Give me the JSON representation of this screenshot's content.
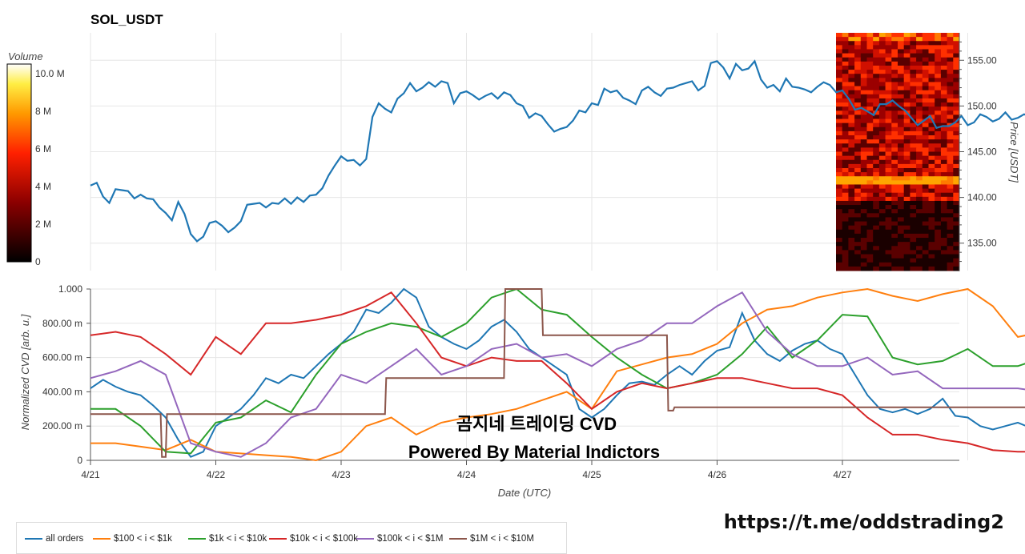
{
  "chart_data": [
    {
      "type": "line",
      "title": "SOL_USDT",
      "ylabel": "Price [USDT]",
      "ylim": [
        132,
        158
      ],
      "y_ticks": [
        "155.00",
        "150.00",
        "145.00",
        "140.00",
        "135.00"
      ],
      "series": [
        {
          "color": "#1f77b4",
          "x": [
            0,
            0.05,
            0.1,
            0.15,
            0.2,
            0.25,
            0.3,
            0.35,
            0.4,
            0.45,
            0.5,
            0.55,
            0.6,
            0.65,
            0.7,
            0.75,
            0.8,
            0.85,
            0.9,
            0.95,
            1.0,
            1.05,
            1.1,
            1.15,
            1.2,
            1.25,
            1.3,
            1.35,
            1.4,
            1.45,
            1.5,
            1.55,
            1.6,
            1.65,
            1.7,
            1.75,
            1.8,
            1.85,
            1.9,
            1.95,
            2.0,
            2.05,
            2.1,
            2.15,
            2.2,
            2.25,
            2.3,
            2.35,
            2.4,
            2.45,
            2.5,
            2.55,
            2.6,
            2.65,
            2.7,
            2.75,
            2.8,
            2.85,
            2.9,
            2.95,
            3.0,
            3.05,
            3.1,
            3.15,
            3.2,
            3.25,
            3.3,
            3.35,
            3.4,
            3.45,
            3.5,
            3.55,
            3.6,
            3.65,
            3.7,
            3.75,
            3.8,
            3.85,
            3.9,
            3.95,
            4.0,
            4.05,
            4.1,
            4.15,
            4.2,
            4.25,
            4.3,
            4.35,
            4.4,
            4.45,
            4.5,
            4.55,
            4.6,
            4.65,
            4.7,
            4.75,
            4.8,
            4.85,
            4.9,
            4.95,
            5.0,
            5.05,
            5.1,
            5.15,
            5.2,
            5.25,
            5.3,
            5.35,
            5.4,
            5.45,
            5.5,
            5.55,
            5.6,
            5.65,
            5.7,
            5.75,
            5.8,
            5.85,
            5.9,
            5.95,
            6.0,
            6.05,
            6.1,
            6.15,
            6.2,
            6.25,
            6.3,
            6.35,
            6.4,
            6.45,
            6.5,
            6.55,
            6.6,
            6.65,
            6.7,
            6.75,
            6.8,
            6.85,
            6.9,
            6.95,
            7.0,
            7.05,
            7.1,
            7.15,
            7.2,
            7.25,
            7.3,
            7.35,
            7.4,
            7.45,
            7.5,
            7.55,
            7.6,
            7.65,
            7.7,
            7.75,
            7.8,
            7.85,
            7.9,
            7.95
          ],
          "y": [
            141.3,
            141.6,
            140.1,
            139.4,
            140.9,
            140.8,
            140.7,
            139.9,
            140.3,
            139.9,
            139.8,
            138.9,
            138.3,
            137.5,
            139.5,
            138.2,
            136.0,
            135.2,
            135.7,
            137.2,
            137.4,
            136.9,
            136.2,
            136.7,
            137.4,
            139.2,
            139.3,
            139.4,
            138.9,
            139.4,
            139.3,
            139.9,
            139.3,
            140.0,
            139.5,
            140.2,
            140.3,
            141.0,
            142.4,
            143.5,
            144.5,
            144.0,
            144.1,
            143.5,
            144.2,
            148.8,
            150.3,
            149.7,
            149.3,
            150.8,
            151.4,
            152.5,
            151.6,
            152.0,
            152.6,
            152.1,
            152.7,
            152.5,
            150.3,
            151.4,
            151.6,
            151.2,
            150.7,
            151.1,
            151.4,
            150.8,
            151.5,
            151.2,
            150.3,
            150.0,
            148.7,
            149.2,
            148.9,
            148.0,
            147.2,
            147.5,
            147.7,
            148.4,
            149.5,
            149.3,
            150.3,
            150.1,
            151.9,
            151.5,
            151.7,
            150.9,
            150.6,
            150.2,
            151.7,
            152.1,
            151.5,
            151.1,
            151.9,
            152.0,
            152.3,
            152.5,
            152.7,
            151.7,
            152.2,
            154.7,
            154.9,
            154.2,
            153.0,
            154.6,
            153.9,
            154.1,
            154.9,
            152.9,
            152.0,
            152.3,
            151.6,
            153.0,
            152.1,
            152.0,
            151.8,
            151.5,
            152.1,
            152.6,
            152.3,
            151.5,
            151.7,
            150.8,
            149.6,
            149.8,
            149.4,
            149.0,
            150.2,
            150.2,
            150.6,
            150.0,
            149.5,
            148.7,
            147.9,
            148.4,
            148.9,
            147.6,
            147.8,
            147.8,
            148.2,
            148.9,
            147.9,
            148.2,
            149.1,
            148.8,
            148.3,
            148.6,
            149.3,
            148.5,
            148.7,
            149.1,
            148.8,
            149.3,
            149.1,
            149.4,
            150.2,
            149.4,
            149.9,
            149.1,
            149.5,
            149.0
          ]
        }
      ],
      "heatmap_colorbar": {
        "label": "Volume",
        "range": [
          0,
          10.5
        ],
        "ticks": [
          "10.0 M",
          "8 M",
          "6 M",
          "4 M",
          "2 M",
          "0"
        ]
      }
    },
    {
      "type": "line",
      "xlabel": "Date (UTC)",
      "ylabel": "Normalized CVD [arb. u.]",
      "ylim": [
        0,
        1
      ],
      "x_ticks": [
        "4/21",
        "4/22",
        "4/23",
        "4/24",
        "4/25",
        "4/26",
        "4/27"
      ],
      "y_ticks": [
        "1.000",
        "800.00 m",
        "600.00 m",
        "400.00 m",
        "200.00 m",
        "0"
      ],
      "series": [
        {
          "name": "all orders",
          "color": "#1f77b4",
          "x": [
            0,
            0.1,
            0.2,
            0.3,
            0.4,
            0.5,
            0.6,
            0.7,
            0.8,
            0.9,
            1.0,
            1.1,
            1.2,
            1.3,
            1.4,
            1.5,
            1.6,
            1.7,
            1.8,
            1.9,
            2.0,
            2.1,
            2.2,
            2.3,
            2.4,
            2.5,
            2.6,
            2.7,
            2.8,
            2.9,
            3.0,
            3.1,
            3.2,
            3.3,
            3.4,
            3.5,
            3.6,
            3.7,
            3.8,
            3.9,
            4.0,
            4.1,
            4.2,
            4.3,
            4.4,
            4.5,
            4.6,
            4.7,
            4.8,
            4.9,
            5.0,
            5.1,
            5.2,
            5.3,
            5.4,
            5.5,
            5.6,
            5.7,
            5.8,
            5.9,
            6.0,
            6.1,
            6.2,
            6.3,
            6.4,
            6.5,
            6.6,
            6.7,
            6.8,
            6.9,
            7.0,
            7.1,
            7.2,
            7.3,
            7.4,
            7.5,
            7.6,
            7.7,
            7.8,
            7.9,
            7.95
          ],
          "y": [
            0.42,
            0.47,
            0.43,
            0.4,
            0.38,
            0.32,
            0.25,
            0.12,
            0.02,
            0.05,
            0.2,
            0.25,
            0.3,
            0.38,
            0.48,
            0.45,
            0.5,
            0.48,
            0.55,
            0.62,
            0.68,
            0.75,
            0.88,
            0.86,
            0.92,
            1.0,
            0.95,
            0.78,
            0.72,
            0.68,
            0.65,
            0.7,
            0.78,
            0.82,
            0.75,
            0.65,
            0.6,
            0.55,
            0.5,
            0.3,
            0.25,
            0.3,
            0.38,
            0.45,
            0.46,
            0.44,
            0.5,
            0.55,
            0.5,
            0.58,
            0.64,
            0.66,
            0.86,
            0.7,
            0.62,
            0.58,
            0.64,
            0.68,
            0.7,
            0.65,
            0.62,
            0.5,
            0.38,
            0.3,
            0.28,
            0.3,
            0.27,
            0.3,
            0.36,
            0.26,
            0.25,
            0.2,
            0.18,
            0.2,
            0.22,
            0.19,
            0.2,
            0.17,
            0.19,
            0.13,
            0.11
          ]
        },
        {
          "name": "$100 < i < $1k",
          "color": "#ff7f0e",
          "x": [
            0,
            0.2,
            0.4,
            0.6,
            0.8,
            1.0,
            1.2,
            1.4,
            1.6,
            1.8,
            2.0,
            2.2,
            2.4,
            2.6,
            2.8,
            3.0,
            3.2,
            3.4,
            3.6,
            3.8,
            4.0,
            4.2,
            4.4,
            4.6,
            4.8,
            5.0,
            5.2,
            5.4,
            5.6,
            5.8,
            6.0,
            6.2,
            6.4,
            6.6,
            6.8,
            7.0,
            7.2,
            7.4,
            7.6,
            7.8,
            7.95
          ],
          "y": [
            0.1,
            0.1,
            0.08,
            0.06,
            0.12,
            0.05,
            0.04,
            0.03,
            0.02,
            0.0,
            0.05,
            0.2,
            0.25,
            0.15,
            0.22,
            0.25,
            0.27,
            0.3,
            0.35,
            0.4,
            0.3,
            0.52,
            0.56,
            0.6,
            0.62,
            0.68,
            0.8,
            0.88,
            0.9,
            0.95,
            0.98,
            1.0,
            0.96,
            0.93,
            0.97,
            1.0,
            0.9,
            0.72,
            0.75,
            0.8,
            0.77
          ]
        },
        {
          "name": "$1k < i < $10k",
          "color": "#2ca02c",
          "x": [
            0,
            0.2,
            0.4,
            0.6,
            0.8,
            1.0,
            1.2,
            1.4,
            1.6,
            1.8,
            2.0,
            2.2,
            2.4,
            2.6,
            2.8,
            3.0,
            3.2,
            3.4,
            3.6,
            3.8,
            4.0,
            4.2,
            4.4,
            4.6,
            4.8,
            5.0,
            5.2,
            5.4,
            5.6,
            5.8,
            6.0,
            6.2,
            6.4,
            6.6,
            6.8,
            7.0,
            7.2,
            7.4,
            7.6,
            7.8,
            7.95
          ],
          "y": [
            0.3,
            0.3,
            0.2,
            0.05,
            0.04,
            0.22,
            0.25,
            0.35,
            0.28,
            0.5,
            0.68,
            0.75,
            0.8,
            0.78,
            0.72,
            0.8,
            0.95,
            1.0,
            0.88,
            0.85,
            0.72,
            0.6,
            0.5,
            0.42,
            0.45,
            0.5,
            0.62,
            0.78,
            0.6,
            0.7,
            0.85,
            0.84,
            0.6,
            0.56,
            0.58,
            0.65,
            0.55,
            0.55,
            0.6,
            0.68,
            0.62
          ]
        },
        {
          "name": "$10k < i < $100k",
          "color": "#d62728",
          "x": [
            0,
            0.2,
            0.4,
            0.6,
            0.8,
            1.0,
            1.2,
            1.4,
            1.6,
            1.8,
            2.0,
            2.2,
            2.4,
            2.6,
            2.8,
            3.0,
            3.2,
            3.4,
            3.6,
            3.8,
            4.0,
            4.2,
            4.4,
            4.6,
            4.8,
            5.0,
            5.2,
            5.4,
            5.6,
            5.8,
            6.0,
            6.2,
            6.4,
            6.6,
            6.8,
            7.0,
            7.2,
            7.4,
            7.6,
            7.8,
            7.95
          ],
          "y": [
            0.73,
            0.75,
            0.72,
            0.62,
            0.5,
            0.72,
            0.62,
            0.8,
            0.8,
            0.82,
            0.85,
            0.9,
            0.98,
            0.8,
            0.6,
            0.55,
            0.6,
            0.58,
            0.58,
            0.45,
            0.3,
            0.4,
            0.45,
            0.42,
            0.45,
            0.48,
            0.48,
            0.45,
            0.42,
            0.42,
            0.38,
            0.25,
            0.15,
            0.15,
            0.12,
            0.1,
            0.06,
            0.05,
            0.05,
            0.05,
            0.0
          ]
        },
        {
          "name": "$100k < i < $1M",
          "color": "#9467bd",
          "x": [
            0,
            0.2,
            0.4,
            0.6,
            0.8,
            1.0,
            1.2,
            1.4,
            1.6,
            1.8,
            2.0,
            2.2,
            2.4,
            2.6,
            2.8,
            3.0,
            3.2,
            3.4,
            3.6,
            3.8,
            4.0,
            4.2,
            4.4,
            4.6,
            4.8,
            5.0,
            5.2,
            5.4,
            5.6,
            5.8,
            6.0,
            6.2,
            6.4,
            6.6,
            6.8,
            7.0,
            7.2,
            7.4,
            7.6,
            7.8,
            7.95
          ],
          "y": [
            0.48,
            0.52,
            0.58,
            0.5,
            0.1,
            0.05,
            0.02,
            0.1,
            0.25,
            0.3,
            0.5,
            0.45,
            0.55,
            0.65,
            0.5,
            0.55,
            0.65,
            0.68,
            0.6,
            0.62,
            0.55,
            0.65,
            0.7,
            0.8,
            0.8,
            0.9,
            0.98,
            0.75,
            0.62,
            0.55,
            0.55,
            0.6,
            0.5,
            0.52,
            0.42,
            0.42,
            0.42,
            0.42,
            0.4,
            0.42,
            0.41
          ]
        },
        {
          "name": "$1M < i < $10M",
          "color": "#8c564b",
          "x": [
            0,
            0.56,
            0.57,
            0.6,
            0.61,
            0.64,
            0.65,
            0.66,
            0.67,
            1.5,
            1.52,
            1.65,
            1.66,
            2.0,
            2.01,
            2.3,
            2.31,
            2.35,
            2.36,
            2.6,
            2.62,
            2.99,
            3.0,
            3.3,
            3.31,
            3.4,
            3.41,
            3.6,
            3.61,
            4.6,
            4.61,
            4.65,
            4.66,
            7.95
          ],
          "y": [
            0.27,
            0.27,
            0.02,
            0.02,
            0.27,
            0.27,
            0.27,
            0.27,
            0.27,
            0.27,
            0.27,
            0.27,
            0.27,
            0.27,
            0.27,
            0.27,
            0.27,
            0.27,
            0.48,
            0.48,
            0.48,
            0.48,
            0.48,
            0.48,
            1.0,
            1.0,
            1.0,
            1.0,
            0.73,
            0.73,
            0.29,
            0.29,
            0.31,
            0.31
          ]
        }
      ]
    }
  ],
  "watermark": {
    "line1": "곰지네 트레이딩 CVD",
    "line2": "Powered By Material Indictors"
  },
  "footer_link": "https://t.me/oddstrading2"
}
